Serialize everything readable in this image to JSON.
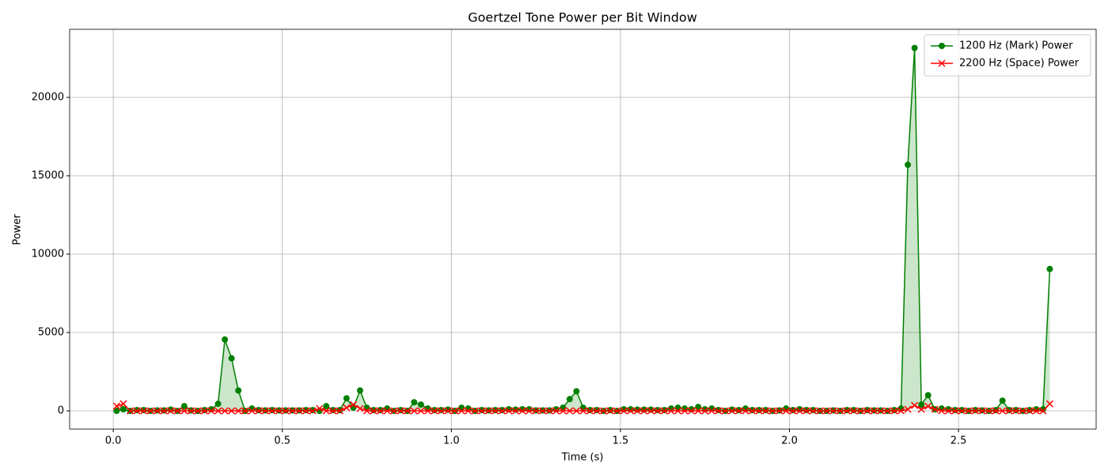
{
  "chart_data": {
    "type": "line",
    "title": "Goertzel Tone Power per Bit Window",
    "x_label": "Time (s)",
    "y_label": "Power",
    "x": [
      0.01,
      0.03,
      0.05,
      0.07,
      0.09,
      0.11,
      0.13,
      0.15,
      0.17,
      0.19,
      0.21,
      0.23,
      0.25,
      0.27,
      0.29,
      0.31,
      0.33,
      0.35,
      0.37,
      0.39,
      0.41,
      0.43,
      0.45,
      0.47,
      0.49,
      0.51,
      0.53,
      0.55,
      0.57,
      0.59,
      0.61,
      0.63,
      0.65,
      0.67,
      0.69,
      0.71,
      0.73,
      0.75,
      0.77,
      0.79,
      0.81,
      0.83,
      0.85,
      0.87,
      0.89,
      0.91,
      0.93,
      0.95,
      0.97,
      0.99,
      1.01,
      1.03,
      1.05,
      1.07,
      1.09,
      1.11,
      1.13,
      1.15,
      1.17,
      1.19,
      1.21,
      1.23,
      1.25,
      1.27,
      1.29,
      1.31,
      1.33,
      1.35,
      1.37,
      1.39,
      1.41,
      1.43,
      1.45,
      1.47,
      1.49,
      1.51,
      1.53,
      1.55,
      1.57,
      1.59,
      1.61,
      1.63,
      1.65,
      1.67,
      1.69,
      1.71,
      1.73,
      1.75,
      1.77,
      1.79,
      1.81,
      1.83,
      1.85,
      1.87,
      1.89,
      1.91,
      1.93,
      1.95,
      1.97,
      1.99,
      2.01,
      2.03,
      2.05,
      2.07,
      2.09,
      2.11,
      2.13,
      2.15,
      2.17,
      2.19,
      2.21,
      2.23,
      2.25,
      2.27,
      2.29,
      2.31,
      2.33,
      2.35,
      2.37,
      2.39,
      2.41,
      2.43,
      2.45,
      2.47,
      2.49,
      2.51,
      2.53,
      2.55,
      2.57,
      2.59,
      2.61,
      2.63,
      2.65,
      2.67,
      2.69,
      2.71,
      2.73,
      2.75,
      2.77
    ],
    "series": [
      {
        "name": "1200 Hz (Mark) Power",
        "color": "#008000",
        "marker": "o",
        "values": [
          0,
          100,
          0,
          50,
          50,
          0,
          30,
          30,
          80,
          0,
          300,
          30,
          0,
          50,
          100,
          450,
          4550,
          3350,
          1300,
          0,
          150,
          50,
          30,
          50,
          30,
          30,
          30,
          30,
          50,
          50,
          0,
          300,
          50,
          50,
          800,
          200,
          1300,
          200,
          50,
          50,
          150,
          0,
          50,
          0,
          550,
          400,
          150,
          50,
          50,
          80,
          0,
          200,
          150,
          0,
          50,
          30,
          50,
          50,
          100,
          80,
          100,
          100,
          30,
          30,
          30,
          100,
          200,
          750,
          1250,
          200,
          50,
          50,
          0,
          50,
          0,
          100,
          100,
          80,
          80,
          80,
          50,
          50,
          150,
          200,
          150,
          100,
          250,
          100,
          150,
          50,
          0,
          80,
          50,
          150,
          50,
          50,
          50,
          0,
          30,
          150,
          50,
          100,
          50,
          50,
          0,
          0,
          30,
          0,
          50,
          50,
          0,
          50,
          30,
          30,
          0,
          50,
          150,
          15700,
          23150,
          400,
          1000,
          100,
          150,
          100,
          50,
          50,
          0,
          50,
          30,
          0,
          50,
          650,
          50,
          50,
          0,
          50,
          100,
          100,
          9050
        ]
      },
      {
        "name": "2200 Hz (Space) Power",
        "color": "#ff0000",
        "marker": "x",
        "values": [
          300,
          450,
          0,
          0,
          0,
          0,
          0,
          0,
          0,
          0,
          0,
          0,
          0,
          0,
          0,
          0,
          0,
          0,
          0,
          0,
          0,
          0,
          0,
          0,
          0,
          0,
          0,
          0,
          0,
          0,
          150,
          0,
          0,
          0,
          200,
          400,
          150,
          0,
          0,
          0,
          0,
          0,
          0,
          0,
          0,
          0,
          0,
          0,
          0,
          0,
          0,
          0,
          0,
          0,
          0,
          0,
          0,
          0,
          0,
          0,
          0,
          0,
          0,
          0,
          0,
          0,
          0,
          0,
          0,
          0,
          0,
          0,
          0,
          0,
          0,
          0,
          0,
          0,
          0,
          0,
          0,
          0,
          0,
          0,
          0,
          0,
          0,
          0,
          0,
          0,
          0,
          0,
          0,
          0,
          0,
          0,
          0,
          0,
          0,
          0,
          0,
          0,
          0,
          0,
          0,
          0,
          0,
          0,
          0,
          0,
          0,
          0,
          0,
          0,
          0,
          0,
          0,
          100,
          350,
          100,
          300,
          100,
          0,
          0,
          0,
          0,
          0,
          0,
          0,
          0,
          0,
          0,
          0,
          0,
          0,
          0,
          0,
          0,
          450
        ]
      }
    ],
    "fill_color": "#008000",
    "xlim": [
      -0.129,
      2.907
    ],
    "ylim": [
      -1162,
      24343
    ],
    "xticks": [
      {
        "value": 0,
        "label": "0.0"
      },
      0.5,
      {
        "value": 1,
        "label": "1.0"
      },
      1.5,
      {
        "value": 2,
        "label": "2.0"
      },
      2.5
    ],
    "yticks": [
      0,
      5000,
      10000,
      15000,
      20000
    ],
    "grid": true,
    "legend": "upper right"
  }
}
